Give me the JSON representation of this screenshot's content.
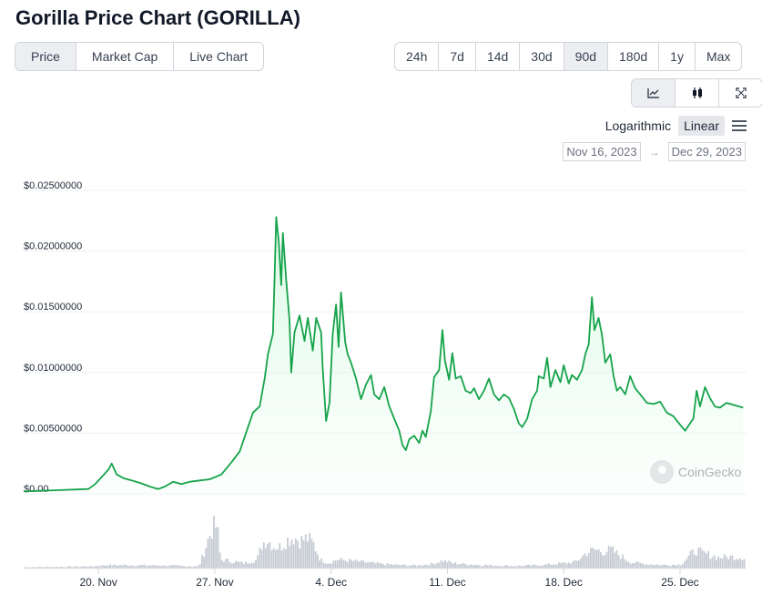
{
  "header": {
    "title": "Gorilla Price Chart (GORILLA)"
  },
  "metric_tabs": [
    {
      "label": "Price",
      "active": true
    },
    {
      "label": "Market Cap",
      "active": false
    },
    {
      "label": "Live Chart",
      "active": false
    }
  ],
  "range_tabs": [
    {
      "label": "24h",
      "active": false
    },
    {
      "label": "7d",
      "active": false
    },
    {
      "label": "14d",
      "active": false
    },
    {
      "label": "30d",
      "active": false
    },
    {
      "label": "90d",
      "active": true
    },
    {
      "label": "180d",
      "active": false
    },
    {
      "label": "1y",
      "active": false
    },
    {
      "label": "Max",
      "active": false
    }
  ],
  "chart_type_buttons": [
    {
      "icon": "line-chart-icon",
      "active": true
    },
    {
      "icon": "candlestick-icon",
      "active": false
    },
    {
      "icon": "fullscreen-icon",
      "active": false
    }
  ],
  "scale": {
    "logarithmic": "Logarithmic",
    "linear": "Linear",
    "selected": "Linear"
  },
  "date_range": {
    "from": "Nov 16, 2023",
    "to": "Dec 29, 2023",
    "arrow": "→"
  },
  "watermark": {
    "text": "CoinGecko"
  },
  "colors": {
    "line": "#16a34a",
    "area": "#dcfce7",
    "volume": "#c8ccd4",
    "grid": "#f0f1f3"
  },
  "chart_data": {
    "type": "line",
    "title": "",
    "y_scale": "linear",
    "ylim": [
      0,
      0.025
    ],
    "y_ticks": [
      {
        "value": 0,
        "label": "$0.00"
      },
      {
        "value": 0.005,
        "label": "$0.00500000"
      },
      {
        "value": 0.01,
        "label": "$0.01000000"
      },
      {
        "value": 0.015,
        "label": "$0.01500000"
      },
      {
        "value": 0.02,
        "label": "$0.02000000"
      },
      {
        "value": 0.025,
        "label": "$0.02500000"
      }
    ],
    "xlim": [
      0,
      43.5
    ],
    "x_ticks": [
      {
        "value": 4.5,
        "label": "20. Nov"
      },
      {
        "value": 11.5,
        "label": "27. Nov"
      },
      {
        "value": 18.5,
        "label": "4. Dec"
      },
      {
        "value": 25.5,
        "label": "11. Dec"
      },
      {
        "value": 32.5,
        "label": "18. Dec"
      },
      {
        "value": 39.5,
        "label": "25. Dec"
      }
    ],
    "series": [
      {
        "points": [
          [
            0,
            0.0002
          ],
          [
            2,
            0.0003
          ],
          [
            3.9,
            0.0004
          ],
          [
            4.3,
            0.0008
          ],
          [
            4.7,
            0.0014
          ],
          [
            5.1,
            0.002
          ],
          [
            5.3,
            0.0025
          ],
          [
            5.6,
            0.0016
          ],
          [
            6.0,
            0.0013
          ],
          [
            6.5,
            0.0011
          ],
          [
            7.0,
            0.0009
          ],
          [
            7.6,
            0.0006
          ],
          [
            8.1,
            0.0004
          ],
          [
            8.5,
            0.0006
          ],
          [
            9.0,
            0.001
          ],
          [
            9.5,
            0.0008
          ],
          [
            10.0,
            0.001
          ],
          [
            10.6,
            0.0011
          ],
          [
            11.2,
            0.0012
          ],
          [
            11.9,
            0.0016
          ],
          [
            12.5,
            0.0026
          ],
          [
            13.0,
            0.0035
          ],
          [
            13.4,
            0.0051
          ],
          [
            13.8,
            0.0067
          ],
          [
            14.2,
            0.0072
          ],
          [
            14.5,
            0.0095
          ],
          [
            14.7,
            0.0115
          ],
          [
            15.0,
            0.0132
          ],
          [
            15.1,
            0.0178
          ],
          [
            15.2,
            0.0228
          ],
          [
            15.35,
            0.0208
          ],
          [
            15.5,
            0.0172
          ],
          [
            15.6,
            0.0215
          ],
          [
            15.8,
            0.0176
          ],
          [
            16.0,
            0.0143
          ],
          [
            16.1,
            0.01
          ],
          [
            16.3,
            0.0133
          ],
          [
            16.6,
            0.0147
          ],
          [
            16.9,
            0.0126
          ],
          [
            17.1,
            0.0145
          ],
          [
            17.4,
            0.0118
          ],
          [
            17.6,
            0.0145
          ],
          [
            17.9,
            0.0133
          ],
          [
            18.0,
            0.0102
          ],
          [
            18.2,
            0.006
          ],
          [
            18.4,
            0.0075
          ],
          [
            18.6,
            0.0132
          ],
          [
            18.8,
            0.0156
          ],
          [
            18.95,
            0.0121
          ],
          [
            19.1,
            0.0166
          ],
          [
            19.35,
            0.0125
          ],
          [
            19.5,
            0.0115
          ],
          [
            19.7,
            0.0108
          ],
          [
            20.0,
            0.0095
          ],
          [
            20.3,
            0.0078
          ],
          [
            20.6,
            0.009
          ],
          [
            20.9,
            0.0098
          ],
          [
            21.1,
            0.0082
          ],
          [
            21.4,
            0.0078
          ],
          [
            21.7,
            0.0088
          ],
          [
            22.0,
            0.0072
          ],
          [
            22.3,
            0.0062
          ],
          [
            22.6,
            0.0052
          ],
          [
            22.8,
            0.004
          ],
          [
            23.0,
            0.0036
          ],
          [
            23.2,
            0.0045
          ],
          [
            23.5,
            0.0048
          ],
          [
            23.8,
            0.0042
          ],
          [
            24.0,
            0.0052
          ],
          [
            24.2,
            0.0047
          ],
          [
            24.5,
            0.0068
          ],
          [
            24.7,
            0.0096
          ],
          [
            25.0,
            0.0102
          ],
          [
            25.2,
            0.0135
          ],
          [
            25.35,
            0.011
          ],
          [
            25.6,
            0.0094
          ],
          [
            25.8,
            0.0116
          ],
          [
            26.0,
            0.0095
          ],
          [
            26.3,
            0.0097
          ],
          [
            26.6,
            0.0085
          ],
          [
            26.9,
            0.0083
          ],
          [
            27.1,
            0.0087
          ],
          [
            27.4,
            0.0078
          ],
          [
            27.7,
            0.0085
          ],
          [
            28.0,
            0.0095
          ],
          [
            28.3,
            0.0082
          ],
          [
            28.6,
            0.0077
          ],
          [
            28.9,
            0.0082
          ],
          [
            29.2,
            0.0079
          ],
          [
            29.5,
            0.007
          ],
          [
            29.8,
            0.0058
          ],
          [
            30.0,
            0.0055
          ],
          [
            30.3,
            0.0062
          ],
          [
            30.6,
            0.0078
          ],
          [
            30.9,
            0.0085
          ],
          [
            31.0,
            0.0097
          ],
          [
            31.3,
            0.0095
          ],
          [
            31.5,
            0.0112
          ],
          [
            31.7,
            0.0088
          ],
          [
            32.0,
            0.0102
          ],
          [
            32.3,
            0.0092
          ],
          [
            32.5,
            0.0106
          ],
          [
            32.8,
            0.0091
          ],
          [
            33.0,
            0.0098
          ],
          [
            33.3,
            0.0094
          ],
          [
            33.6,
            0.0102
          ],
          [
            33.8,
            0.0115
          ],
          [
            34.0,
            0.0123
          ],
          [
            34.2,
            0.0162
          ],
          [
            34.35,
            0.0135
          ],
          [
            34.6,
            0.0145
          ],
          [
            34.8,
            0.0131
          ],
          [
            35.0,
            0.0108
          ],
          [
            35.3,
            0.0115
          ],
          [
            35.5,
            0.0097
          ],
          [
            35.7,
            0.0085
          ],
          [
            35.9,
            0.0088
          ],
          [
            36.2,
            0.0082
          ],
          [
            36.5,
            0.0097
          ],
          [
            36.8,
            0.0087
          ],
          [
            37.1,
            0.0082
          ],
          [
            37.5,
            0.0075
          ],
          [
            37.9,
            0.0074
          ],
          [
            38.3,
            0.0076
          ],
          [
            38.7,
            0.0067
          ],
          [
            39.1,
            0.0064
          ],
          [
            39.5,
            0.0057
          ],
          [
            39.8,
            0.0052
          ],
          [
            40.1,
            0.0058
          ],
          [
            40.3,
            0.0062
          ],
          [
            40.5,
            0.0085
          ],
          [
            40.7,
            0.0072
          ],
          [
            41.0,
            0.0088
          ],
          [
            41.3,
            0.0079
          ],
          [
            41.6,
            0.0072
          ],
          [
            41.9,
            0.0071
          ],
          [
            42.3,
            0.0075
          ],
          [
            42.8,
            0.0073
          ],
          [
            43.3,
            0.0071
          ]
        ]
      }
    ],
    "volume": {
      "points": [
        [
          0,
          0.03
        ],
        [
          4,
          0.05
        ],
        [
          5,
          0.08
        ],
        [
          8,
          0.07
        ],
        [
          10.5,
          0.05
        ],
        [
          11.2,
          0.8
        ],
        [
          11.4,
          1.0
        ],
        [
          11.6,
          0.9
        ],
        [
          11.8,
          0.2
        ],
        [
          12.2,
          0.18
        ],
        [
          13.2,
          0.12
        ],
        [
          14.0,
          0.2
        ],
        [
          14.3,
          0.55
        ],
        [
          14.6,
          0.65
        ],
        [
          15.0,
          0.5
        ],
        [
          15.4,
          0.48
        ],
        [
          15.8,
          0.64
        ],
        [
          16.2,
          0.7
        ],
        [
          16.6,
          0.62
        ],
        [
          17.0,
          0.68
        ],
        [
          17.4,
          0.55
        ],
        [
          17.8,
          0.2
        ],
        [
          18.3,
          0.12
        ],
        [
          18.8,
          0.2
        ],
        [
          19.5,
          0.18
        ],
        [
          20.5,
          0.14
        ],
        [
          21.5,
          0.1
        ],
        [
          22.5,
          0.08
        ],
        [
          23.5,
          0.07
        ],
        [
          24.5,
          0.1
        ],
        [
          25.2,
          0.18
        ],
        [
          25.8,
          0.12
        ],
        [
          26.5,
          0.1
        ],
        [
          27.5,
          0.08
        ],
        [
          28.5,
          0.07
        ],
        [
          29.5,
          0.06
        ],
        [
          30.5,
          0.07
        ],
        [
          31.5,
          0.09
        ],
        [
          32.5,
          0.12
        ],
        [
          33.2,
          0.15
        ],
        [
          33.8,
          0.35
        ],
        [
          34.3,
          0.42
        ],
        [
          34.8,
          0.38
        ],
        [
          35.3,
          0.42
        ],
        [
          35.8,
          0.3
        ],
        [
          36.5,
          0.14
        ],
        [
          37.5,
          0.1
        ],
        [
          38.5,
          0.08
        ],
        [
          39.5,
          0.09
        ],
        [
          40.0,
          0.28
        ],
        [
          40.4,
          0.42
        ],
        [
          40.8,
          0.34
        ],
        [
          41.3,
          0.3
        ],
        [
          41.8,
          0.25
        ],
        [
          42.5,
          0.26
        ],
        [
          43.3,
          0.25
        ]
      ]
    },
    "grid": true,
    "legend": "none"
  }
}
